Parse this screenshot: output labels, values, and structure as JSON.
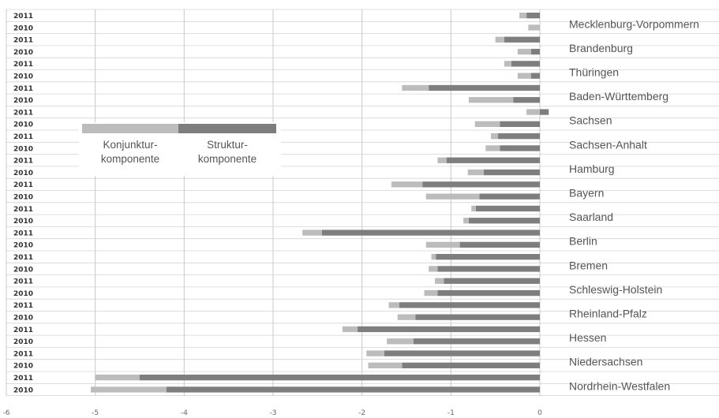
{
  "chart_data": {
    "type": "bar",
    "orientation": "horizontal",
    "stacked": true,
    "xlim": [
      -6,
      0
    ],
    "x_ticks": [
      "-6",
      "-5",
      "-4",
      "-3",
      "-2",
      "-1",
      "0"
    ],
    "grid": true,
    "colors": {
      "konjunktur": "#bcbcbc",
      "struktur": "#7e7e7e",
      "gridline": "#c8c8c8",
      "row_sep": "#d4d4d4"
    },
    "legend": {
      "placement": "top-left",
      "entries": [
        {
          "key": "konjunktur",
          "text_line1": "Konjunktur-",
          "text_line2": "komponente"
        },
        {
          "key": "struktur",
          "text_line1": "Struktur-",
          "text_line2": "komponente"
        }
      ]
    },
    "states": [
      "Mecklenburg-Vorpommern",
      "Brandenburg",
      "Thüringen",
      "Baden-Württemberg",
      "Sachsen",
      "Sachsen-Anhalt",
      "Hamburg",
      "Bayern",
      "Saarland",
      "Berlin",
      "Bremen",
      "Schleswig-Holstein",
      "Rheinland-Pfalz",
      "Hessen",
      "Niedersachsen",
      "Nordrhein-Westfalen"
    ],
    "rows": [
      {
        "year": "2011",
        "state_index": 0,
        "struktur": -0.15,
        "konjunktur": -0.08
      },
      {
        "year": "2010",
        "state_index": 0,
        "struktur": 0,
        "konjunktur": -0.13
      },
      {
        "year": "2011",
        "state_index": 1,
        "struktur": -0.4,
        "konjunktur": -0.1
      },
      {
        "year": "2010",
        "state_index": 1,
        "struktur": -0.1,
        "konjunktur": -0.15
      },
      {
        "year": "2011",
        "state_index": 2,
        "struktur": -0.32,
        "konjunktur": -0.08
      },
      {
        "year": "2010",
        "state_index": 2,
        "struktur": -0.1,
        "konjunktur": -0.15
      },
      {
        "year": "2011",
        "state_index": 3,
        "struktur": -1.25,
        "konjunktur": -0.3
      },
      {
        "year": "2010",
        "state_index": 3,
        "struktur": -0.3,
        "konjunktur": -0.5
      },
      {
        "year": "2011",
        "state_index": 4,
        "struktur": 0.1,
        "konjunktur": -0.15
      },
      {
        "year": "2010",
        "state_index": 4,
        "struktur": -0.45,
        "konjunktur": -0.28
      },
      {
        "year": "2011",
        "state_index": 5,
        "struktur": -0.47,
        "konjunktur": -0.08
      },
      {
        "year": "2010",
        "state_index": 5,
        "struktur": -0.45,
        "konjunktur": -0.16
      },
      {
        "year": "2011",
        "state_index": 6,
        "struktur": -1.05,
        "konjunktur": -0.1
      },
      {
        "year": "2010",
        "state_index": 6,
        "struktur": -0.63,
        "konjunktur": -0.18
      },
      {
        "year": "2011",
        "state_index": 7,
        "struktur": -1.32,
        "konjunktur": -0.35
      },
      {
        "year": "2010",
        "state_index": 7,
        "struktur": -0.68,
        "konjunktur": -0.6
      },
      {
        "year": "2011",
        "state_index": 8,
        "struktur": -0.72,
        "konjunktur": -0.05
      },
      {
        "year": "2010",
        "state_index": 8,
        "struktur": -0.8,
        "konjunktur": -0.06
      },
      {
        "year": "2011",
        "state_index": 9,
        "struktur": -2.45,
        "konjunktur": -0.22
      },
      {
        "year": "2010",
        "state_index": 9,
        "struktur": -0.9,
        "konjunktur": -0.38
      },
      {
        "year": "2011",
        "state_index": 10,
        "struktur": -1.17,
        "konjunktur": -0.05
      },
      {
        "year": "2010",
        "state_index": 10,
        "struktur": -1.15,
        "konjunktur": -0.1
      },
      {
        "year": "2011",
        "state_index": 11,
        "struktur": -1.08,
        "konjunktur": -0.1
      },
      {
        "year": "2010",
        "state_index": 11,
        "struktur": -1.15,
        "konjunktur": -0.15
      },
      {
        "year": "2011",
        "state_index": 12,
        "struktur": -1.58,
        "konjunktur": -0.12
      },
      {
        "year": "2010",
        "state_index": 12,
        "struktur": -1.4,
        "konjunktur": -0.2
      },
      {
        "year": "2011",
        "state_index": 13,
        "struktur": -2.05,
        "konjunktur": -0.17
      },
      {
        "year": "2010",
        "state_index": 13,
        "struktur": -1.42,
        "konjunktur": -0.3
      },
      {
        "year": "2011",
        "state_index": 14,
        "struktur": -1.75,
        "konjunktur": -0.2
      },
      {
        "year": "2010",
        "state_index": 14,
        "struktur": -1.55,
        "konjunktur": -0.38
      },
      {
        "year": "2011",
        "state_index": 15,
        "struktur": -4.5,
        "konjunktur": -0.5
      },
      {
        "year": "2010",
        "state_index": 15,
        "struktur": -4.2,
        "konjunktur": -0.85
      }
    ]
  }
}
